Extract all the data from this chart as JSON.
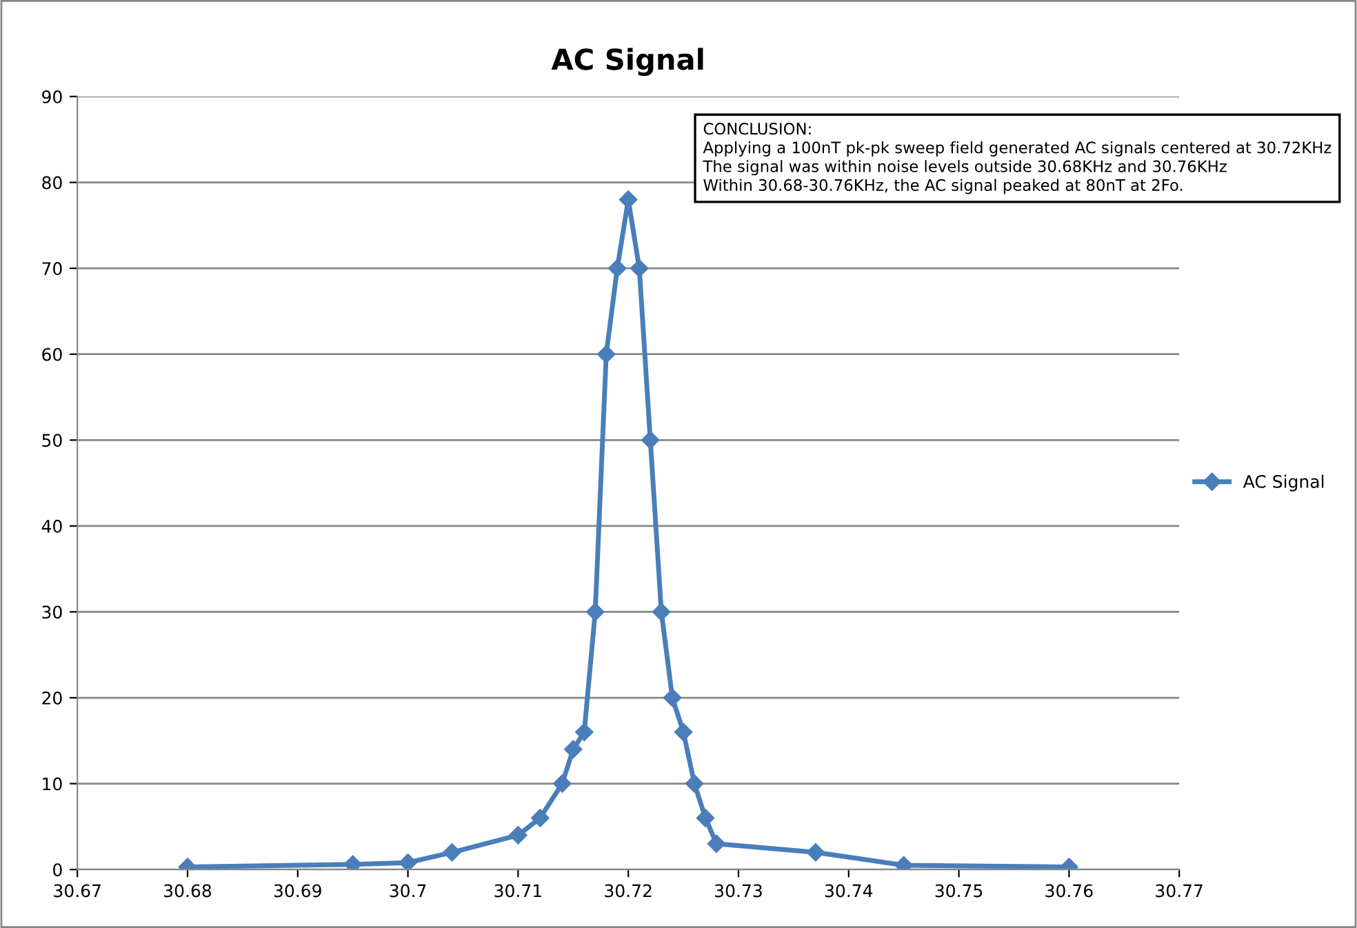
{
  "chart_data": {
    "type": "line",
    "title": "AC Signal",
    "x": [
      30.68,
      30.695,
      30.7,
      30.704,
      30.71,
      30.712,
      30.714,
      30.715,
      30.716,
      30.717,
      30.718,
      30.719,
      30.72,
      30.721,
      30.722,
      30.723,
      30.724,
      30.725,
      30.726,
      30.727,
      30.728,
      30.737,
      30.745,
      30.76
    ],
    "series": [
      {
        "name": "AC Signal",
        "color": "#4a7ebb",
        "values": [
          0.3,
          0.6,
          0.8,
          2,
          4,
          6,
          10,
          14,
          16,
          30,
          60,
          70,
          78,
          70,
          50,
          30,
          20,
          16,
          10,
          6,
          3,
          2,
          0.5,
          0.3
        ]
      }
    ],
    "xlim": [
      30.67,
      30.77
    ],
    "xticks": [
      30.67,
      30.68,
      30.69,
      {
        "value": 30.7,
        "label": "30.7"
      },
      30.71,
      30.72,
      30.73,
      30.74,
      30.75,
      30.76,
      30.77
    ],
    "ylim": [
      0,
      90
    ],
    "yticks": [
      0,
      10,
      20,
      30,
      40,
      50,
      60,
      70,
      80,
      90
    ],
    "grid": "y",
    "legend": "right",
    "marker": "diamond",
    "line_style": "solid",
    "annotations": [
      "CONCLUSION:\nApplying a 100nT pk-pk sweep field generated AC signals centered at 30.72KHz\nThe signal was within noise levels outside 30.68KHz and 30.76KHz\nWithin 30.68-30.76KHz, the AC signal peaked at 80nT at 2Fo."
    ]
  }
}
